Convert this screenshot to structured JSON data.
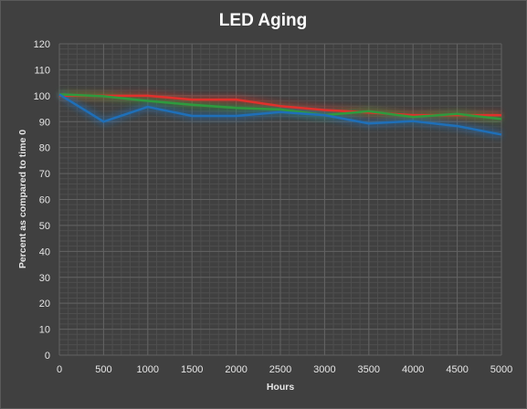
{
  "chart_data": {
    "type": "line",
    "title": "LED Aging",
    "xlabel": "Hours",
    "ylabel": "Percent as compared  to time 0",
    "xlim": [
      0,
      5000
    ],
    "ylim": [
      0,
      120
    ],
    "x_ticks": [
      0,
      500,
      1000,
      1500,
      2000,
      2500,
      3000,
      3500,
      4000,
      4500,
      5000
    ],
    "y_ticks": [
      0,
      10,
      20,
      30,
      40,
      50,
      60,
      70,
      80,
      90,
      100,
      110,
      120
    ],
    "grid": true,
    "legend": "none",
    "x": [
      0,
      500,
      1000,
      1500,
      2000,
      2500,
      3000,
      3500,
      4000,
      4500,
      5000
    ],
    "series": [
      {
        "color": "#e0302c",
        "values": [
          100,
          100,
          100,
          98.5,
          98.5,
          96,
          94.5,
          93.5,
          92.5,
          92.5,
          92.5
        ]
      },
      {
        "color": "#2e9a3e",
        "values": [
          100.5,
          99.8,
          98,
          96.5,
          95.3,
          94.7,
          92.5,
          94,
          91.8,
          93,
          91
        ]
      },
      {
        "color": "#1f6fb8",
        "values": [
          100.5,
          90,
          95.7,
          92.2,
          92.2,
          93.7,
          92.5,
          89.3,
          90.2,
          88.3,
          85
        ]
      }
    ]
  }
}
